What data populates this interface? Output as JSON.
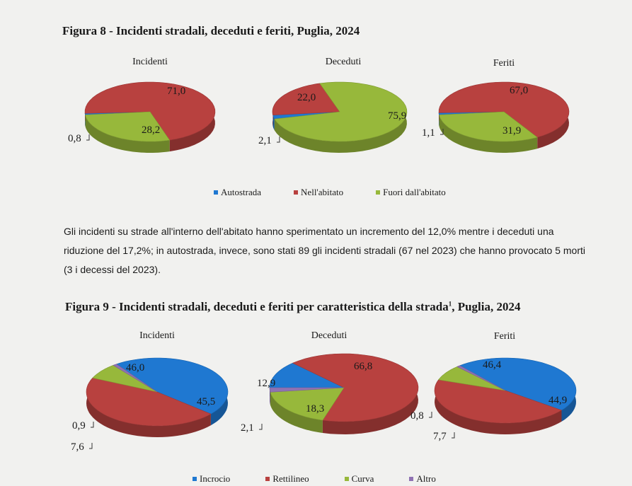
{
  "fig8": {
    "title": "Figura 8 - Incidenti stradali, deceduti e feriti, Puglia, 2024",
    "legend": [
      "Autostrada",
      "Nell'abitato",
      "Fuori dall'abitato"
    ]
  },
  "paragraph": "Gli incidenti su strade all'interno dell'abitato hanno sperimentato un incremento del 12,0% mentre i deceduti una riduzione del 17,2%; in autostrada, invece, sono stati 89 gli incidenti stradali (67 nel 2023) che hanno provocato 5 morti (3 i decessi del 2023).",
  "fig9": {
    "title_main": "Figura 9 - Incidenti stradali, deceduti e feriti per caratteristica della strada",
    "title_sup": "1",
    "title_end": ", Puglia, 2024",
    "legend": [
      "Incrocio",
      "Rettilineo",
      "Curva",
      "Altro"
    ]
  },
  "colors": {
    "blue": "#1f78d1",
    "red": "#b8413f",
    "green": "#97b83b",
    "purple": "#8f72b3"
  },
  "chart_data": [
    {
      "type": "pie",
      "title": "Incidenti",
      "categories": [
        "Autostrada",
        "Nell'abitato",
        "Fuori dall'abitato"
      ],
      "values": [
        0.8,
        71.0,
        28.2
      ],
      "labels": [
        "0,8",
        "71,0",
        "28,2"
      ]
    },
    {
      "type": "pie",
      "title": "Deceduti",
      "categories": [
        "Autostrada",
        "Nell'abitato",
        "Fuori dall'abitato"
      ],
      "values": [
        2.1,
        22.0,
        75.9
      ],
      "labels": [
        "2,1",
        "22,0",
        "75,9"
      ]
    },
    {
      "type": "pie",
      "title": "Feriti",
      "categories": [
        "Autostrada",
        "Nell'abitato",
        "Fuori dall'abitato"
      ],
      "values": [
        1.1,
        67.0,
        31.9
      ],
      "labels": [
        "1,1",
        "67,0",
        "31,9"
      ]
    },
    {
      "type": "pie",
      "title": "Incidenti",
      "categories": [
        "Incrocio",
        "Rettilineo",
        "Curva",
        "Altro"
      ],
      "values": [
        46.0,
        45.5,
        7.6,
        0.9
      ],
      "labels": [
        "46,0",
        "45,5",
        "7,6",
        "0,9"
      ]
    },
    {
      "type": "pie",
      "title": "Deceduti",
      "categories": [
        "Incrocio",
        "Rettilineo",
        "Curva",
        "Altro"
      ],
      "values": [
        12.9,
        66.8,
        18.3,
        2.1
      ],
      "labels": [
        "12,9",
        "66,8",
        "18,3",
        "2,1"
      ]
    },
    {
      "type": "pie",
      "title": "Feriti",
      "categories": [
        "Incrocio",
        "Rettilineo",
        "Curva",
        "Altro"
      ],
      "values": [
        46.4,
        44.9,
        7.7,
        0.8
      ],
      "labels": [
        "46,4",
        "44,9",
        "7,7",
        "0,8"
      ]
    }
  ]
}
